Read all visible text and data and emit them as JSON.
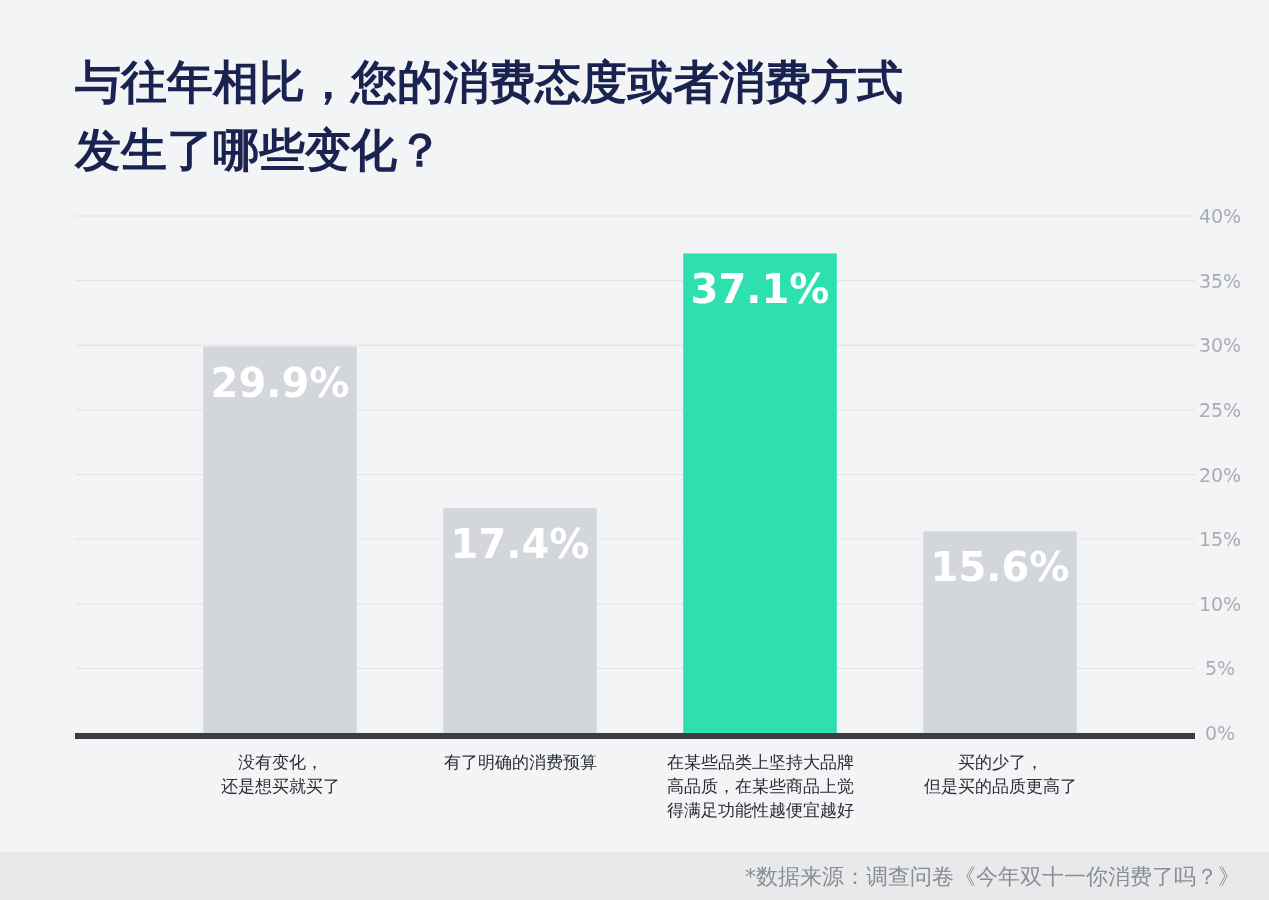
{
  "chart_data": {
    "type": "bar",
    "title": "与往年相比，您的消费态度或者消费方式发生了哪些变化？",
    "categories": [
      "没有变化，还是想买就买了",
      "有了明确的消费预算",
      "在某些品类上坚持大品牌高品质，在某些商品上觉得满足功能性越便宜越好",
      "买的少了，但是买的品质更高了"
    ],
    "values": [
      29.9,
      17.4,
      37.1,
      15.6
    ],
    "colors": [
      "#d3d6db",
      "#d3d6db",
      "#2ee0b0",
      "#d3d6db"
    ],
    "value_labels": [
      "29.9%",
      "17.4%",
      "37.1%",
      "15.6%"
    ],
    "ylim": [
      0,
      40
    ],
    "yticks": [
      {
        "value": 0,
        "label": "0%"
      },
      {
        "value": 5,
        "label": "5%"
      },
      {
        "value": 10,
        "label": "10%"
      },
      {
        "value": 15,
        "label": "15%"
      },
      {
        "value": 20,
        "label": "20%"
      },
      {
        "value": 25,
        "label": "25%"
      },
      {
        "value": 30,
        "label": "30%"
      },
      {
        "value": 35,
        "label": "35%"
      },
      {
        "value": 40,
        "label": "40%"
      }
    ],
    "grid": "y",
    "annotations": [
      "*数据来源：调查问卷《今年双十一你消费了吗？》"
    ]
  }
}
